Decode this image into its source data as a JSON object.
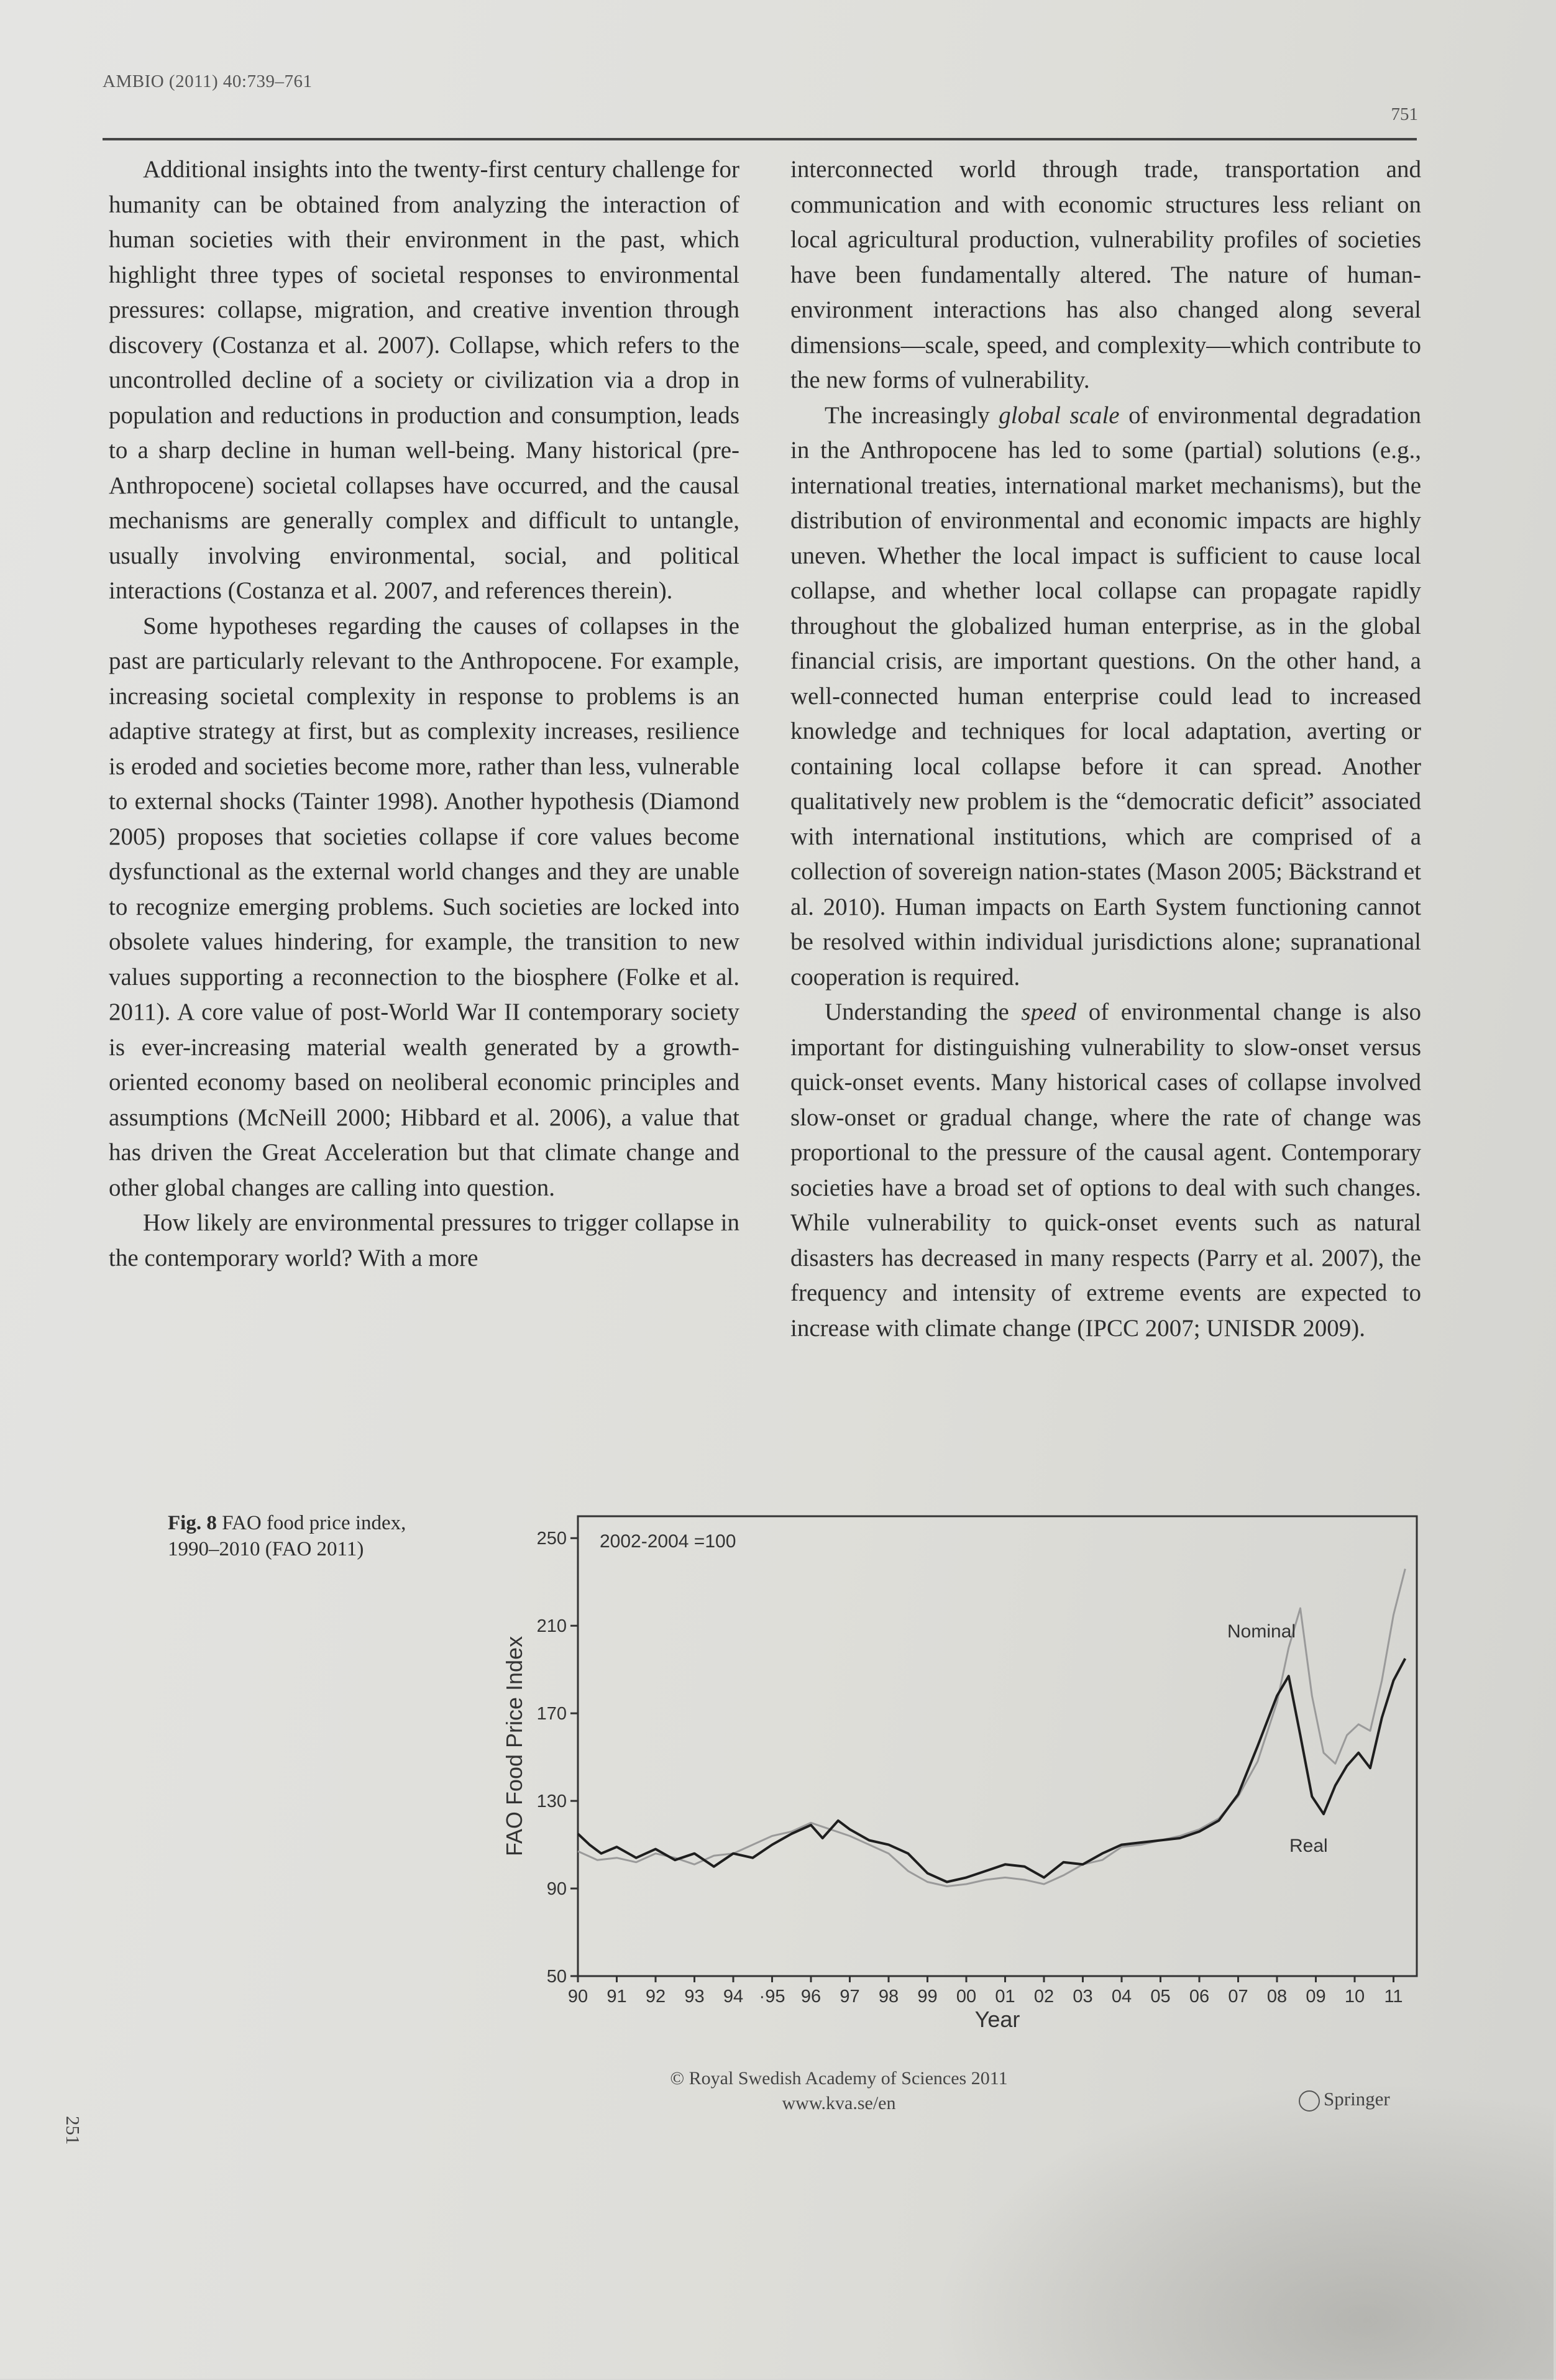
{
  "header": {
    "running_head": "AMBIO (2011) 40:739–761",
    "page_number": "751"
  },
  "left_column": [
    "Additional insights into the twenty-first century challenge for humanity can be obtained from analyzing the interaction of human societies with their environment in the past, which highlight three types of societal responses to environmental pressures: collapse, migration, and creative invention through discovery (Costanza et al. 2007). Collapse, which refers to the uncontrolled decline of a society or civilization via a drop in population and reductions in production and consumption, leads to a sharp decline in human well-being. Many historical (pre-Anthropocene) societal collapses have occurred, and the causal mechanisms are generally complex and difficult to untangle, usually involving environmental, social, and political interactions (Costanza et al. 2007, and references therein).",
    "Some hypotheses regarding the causes of collapses in the past are particularly relevant to the Anthropocene. For example, increasing societal complexity in response to problems is an adaptive strategy at first, but as complexity increases, resilience is eroded and societies become more, rather than less, vulnerable to external shocks (Tainter 1998). Another hypothesis (Diamond 2005) proposes that societies collapse if core values become dysfunctional as the external world changes and they are unable to recognize emerging problems. Such societies are locked into obsolete values hindering, for example, the transition to new values supporting a reconnection to the biosphere (Folke et al. 2011). A core value of post-World War II contemporary society is ever-increasing material wealth generated by a growth-oriented economy based on neoliberal economic principles and assumptions (McNeill 2000; Hibbard et al. 2006), a value that has driven the Great Acceleration but that climate change and other global changes are calling into question.",
    "How likely are environmental pressures to trigger collapse in the contemporary world? With a more"
  ],
  "right_column": {
    "p1": "interconnected world through trade, transportation and communication and with economic structures less reliant on local agricultural production, vulnerability profiles of societies have been fundamentally altered. The nature of human-environment interactions has also changed along several dimensions—scale, speed, and complexity—which contribute to the new forms of vulnerability.",
    "p2_before": "The increasingly ",
    "p2_em": "global scale",
    "p2_after": " of environmental degradation in the Anthropocene has led to some (partial) solutions (e.g., international treaties, international market mechanisms), but the distribution of environmental and economic impacts are highly uneven. Whether the local impact is sufficient to cause local collapse, and whether local collapse can propagate rapidly throughout the globalized human enterprise, as in the global financial crisis, are important questions. On the other hand, a well-connected human enterprise could lead to increased knowledge and techniques for local adaptation, averting or containing local collapse before it can spread. Another qualitatively new problem is the “democratic deficit” associated with international institutions, which are comprised of a collection of sovereign nation-states (Mason 2005; Bäckstrand et al. 2010). Human impacts on Earth System functioning cannot be resolved within individual jurisdictions alone; supranational cooperation is required.",
    "p3_before": "Understanding the ",
    "p3_em": "speed",
    "p3_after": " of environmental change is also important for distinguishing vulnerability to slow-onset versus quick-onset events. Many historical cases of collapse involved slow-onset or gradual change, where the rate of change was proportional to the pressure of the causal agent. Contemporary societies have a broad set of options to deal with such changes. While vulnerability to quick-onset events such as natural disasters has decreased in many respects (Parry et al. 2007), the frequency and intensity of extreme events are expected to increase with climate change (IPCC 2007; UNISDR 2009)."
  },
  "figure": {
    "label": "Fig. 8",
    "caption": "FAO food price index, 1990–2010 (FAO 2011)"
  },
  "chart_data": {
    "type": "line",
    "title": "",
    "annotation": "2002-2004 =100",
    "xlabel": "Year",
    "ylabel": "FAO Food Price Index",
    "x_tick_labels": [
      "90",
      "91",
      "92",
      "93",
      "94",
      "·95",
      "96",
      "97",
      "98",
      "99",
      "00",
      "01",
      "02",
      "03",
      "04",
      "05",
      "06",
      "07",
      "08",
      "09",
      "10",
      "11"
    ],
    "yticks": [
      50,
      90,
      130,
      170,
      210,
      250
    ],
    "ylim": [
      50,
      260
    ],
    "xlim": [
      1990,
      2011.6
    ],
    "series": [
      {
        "name": "Nominal",
        "color": "#9a9a9a",
        "x": [
          1990.0,
          1990.5,
          1991.0,
          1991.5,
          1992.0,
          1992.5,
          1993.0,
          1993.5,
          1994.0,
          1994.5,
          1995.0,
          1995.5,
          1996.0,
          1996.5,
          1997.0,
          1997.5,
          1998.0,
          1998.5,
          1999.0,
          1999.5,
          2000.0,
          2000.5,
          2001.0,
          2001.5,
          2002.0,
          2002.5,
          2003.0,
          2003.5,
          2004.0,
          2004.5,
          2005.0,
          2005.5,
          2006.0,
          2006.5,
          2007.0,
          2007.5,
          2008.0,
          2008.3,
          2008.6,
          2008.9,
          2009.2,
          2009.5,
          2009.8,
          2010.1,
          2010.4,
          2010.7,
          2011.0,
          2011.3
        ],
        "values": [
          107,
          103,
          104,
          102,
          106,
          104,
          101,
          105,
          106,
          110,
          114,
          116,
          120,
          117,
          114,
          110,
          106,
          98,
          93,
          91,
          92,
          94,
          95,
          94,
          92,
          96,
          101,
          103,
          109,
          110,
          112,
          114,
          117,
          122,
          132,
          148,
          175,
          200,
          218,
          178,
          152,
          147,
          160,
          165,
          162,
          185,
          215,
          236
        ]
      },
      {
        "name": "Real",
        "color": "#1e1e1e",
        "x": [
          1990.0,
          1990.3,
          1990.6,
          1991.0,
          1991.5,
          1992.0,
          1992.5,
          1993.0,
          1993.5,
          1994.0,
          1994.5,
          1995.0,
          1995.5,
          1996.0,
          1996.3,
          1996.7,
          1997.0,
          1997.5,
          1998.0,
          1998.5,
          1999.0,
          1999.5,
          2000.0,
          2000.5,
          2001.0,
          2001.5,
          2002.0,
          2002.5,
          2003.0,
          2003.5,
          2004.0,
          2004.5,
          2005.0,
          2005.5,
          2006.0,
          2006.5,
          2007.0,
          2007.5,
          2008.0,
          2008.3,
          2008.6,
          2008.9,
          2009.2,
          2009.5,
          2009.8,
          2010.1,
          2010.4,
          2010.7,
          2011.0,
          2011.3
        ],
        "values": [
          115,
          110,
          106,
          109,
          104,
          108,
          103,
          106,
          100,
          106,
          104,
          110,
          115,
          119,
          113,
          121,
          117,
          112,
          110,
          106,
          97,
          93,
          95,
          98,
          101,
          100,
          95,
          102,
          101,
          106,
          110,
          111,
          112,
          113,
          116,
          121,
          133,
          155,
          178,
          187,
          160,
          132,
          124,
          137,
          146,
          152,
          145,
          168,
          185,
          195
        ]
      }
    ],
    "labels": {
      "nominal": "Nominal",
      "real": "Real"
    }
  },
  "footer": {
    "copyright": "© Royal Swedish Academy of Sciences 2011",
    "url": "www.kva.se/en",
    "publisher": "Springer",
    "side_number": "251"
  }
}
